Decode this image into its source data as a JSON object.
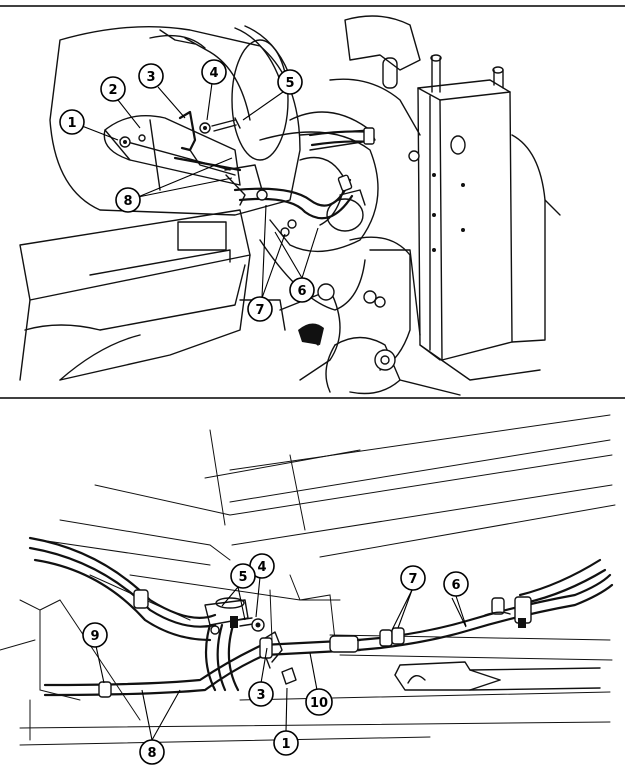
{
  "figure_top": {
    "callouts": [
      {
        "key": "c1",
        "label": "1"
      },
      {
        "key": "c2",
        "label": "2"
      },
      {
        "key": "c3",
        "label": "3"
      },
      {
        "key": "c4",
        "label": "4"
      },
      {
        "key": "c5",
        "label": "5"
      },
      {
        "key": "c6",
        "label": "6"
      },
      {
        "key": "c7",
        "label": "7"
      },
      {
        "key": "c8",
        "label": "8"
      }
    ]
  },
  "figure_bottom": {
    "callouts": [
      {
        "key": "c1",
        "label": "1"
      },
      {
        "key": "c3",
        "label": "3"
      },
      {
        "key": "c4",
        "label": "4"
      },
      {
        "key": "c5",
        "label": "5"
      },
      {
        "key": "c6",
        "label": "6"
      },
      {
        "key": "c7",
        "label": "7"
      },
      {
        "key": "c8",
        "label": "8"
      },
      {
        "key": "c9",
        "label": "9"
      },
      {
        "key": "c10",
        "label": "10"
      }
    ]
  }
}
